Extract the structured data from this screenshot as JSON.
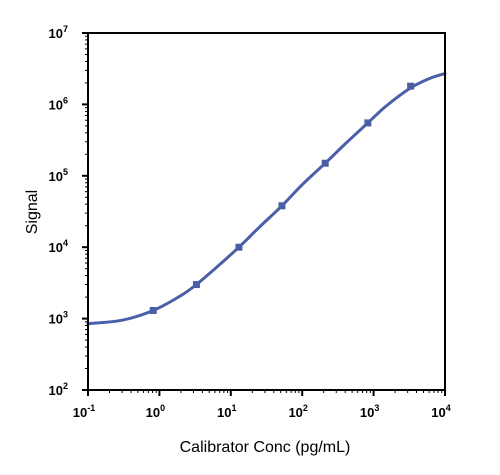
{
  "chart_data": {
    "type": "line",
    "title": "",
    "xlabel": "Calibrator Conc (pg/mL)",
    "ylabel": "Signal",
    "x_scale": "log",
    "y_scale": "log",
    "xlim": [
      0.1,
      10000
    ],
    "ylim": [
      100,
      10000000
    ],
    "x_ticks": [
      {
        "base": "10",
        "exp": "-1"
      },
      {
        "base": "10",
        "exp": "0"
      },
      {
        "base": "10",
        "exp": "1"
      },
      {
        "base": "10",
        "exp": "2"
      },
      {
        "base": "10",
        "exp": "3"
      },
      {
        "base": "10",
        "exp": "4"
      }
    ],
    "y_ticks": [
      {
        "base": "10",
        "exp": "2"
      },
      {
        "base": "10",
        "exp": "3"
      },
      {
        "base": "10",
        "exp": "4"
      },
      {
        "base": "10",
        "exp": "5"
      },
      {
        "base": "10",
        "exp": "6"
      },
      {
        "base": "10",
        "exp": "7"
      }
    ],
    "grid": false,
    "series": [
      {
        "marker": "square",
        "color": "#4a5fa8",
        "points": [
          {
            "x": 0.82,
            "y": 1300
          },
          {
            "x": 3.3,
            "y": 3000
          },
          {
            "x": 13,
            "y": 10000
          },
          {
            "x": 52,
            "y": 38000
          },
          {
            "x": 210,
            "y": 150000
          },
          {
            "x": 830,
            "y": 550000
          },
          {
            "x": 3300,
            "y": 1800000
          }
        ]
      }
    ],
    "fit_curve": {
      "color": "#4a5fa8",
      "points": [
        {
          "x": 0.1,
          "y": 850
        },
        {
          "x": 0.3,
          "y": 950
        },
        {
          "x": 0.82,
          "y": 1300
        },
        {
          "x": 2,
          "y": 2100
        },
        {
          "x": 3.3,
          "y": 3000
        },
        {
          "x": 6,
          "y": 5000
        },
        {
          "x": 13,
          "y": 10000
        },
        {
          "x": 25,
          "y": 19000
        },
        {
          "x": 52,
          "y": 38000
        },
        {
          "x": 100,
          "y": 75000
        },
        {
          "x": 210,
          "y": 150000
        },
        {
          "x": 400,
          "y": 280000
        },
        {
          "x": 830,
          "y": 550000
        },
        {
          "x": 1500,
          "y": 950000
        },
        {
          "x": 3300,
          "y": 1700000
        },
        {
          "x": 6000,
          "y": 2300000
        },
        {
          "x": 10000,
          "y": 2700000
        }
      ]
    }
  }
}
